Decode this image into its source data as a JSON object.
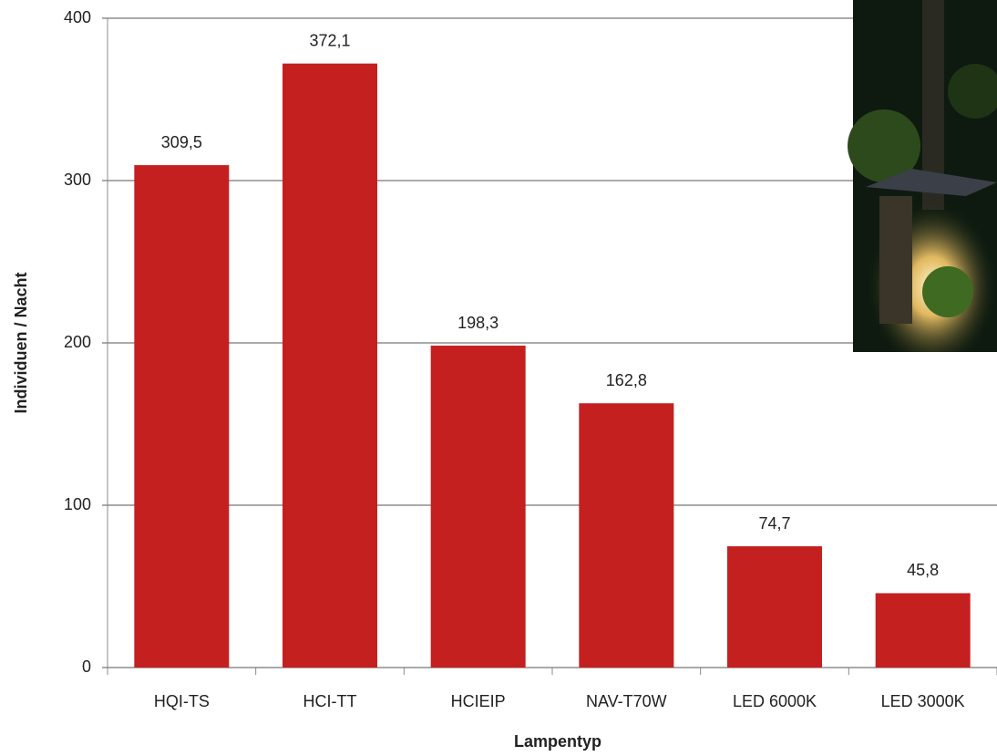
{
  "chart_data": {
    "type": "bar",
    "x_label": "Lampentyp",
    "y_label": "Individuen / Nacht",
    "categories": [
      "HQI-TS",
      "HCI-TT",
      "HCIEIP",
      "NAV-T70W",
      "LED 6000K",
      "LED 3000K"
    ],
    "values": [
      309.5,
      372.1,
      198.3,
      162.8,
      74.7,
      45.8
    ],
    "value_labels": [
      "309,5",
      "372,1",
      "198,3",
      "162,8",
      "74,7",
      "45,8"
    ],
    "color": "#c42020",
    "ylim": [
      0,
      400
    ],
    "yticks": [
      0,
      100,
      200,
      300,
      400
    ],
    "grid": true
  }
}
